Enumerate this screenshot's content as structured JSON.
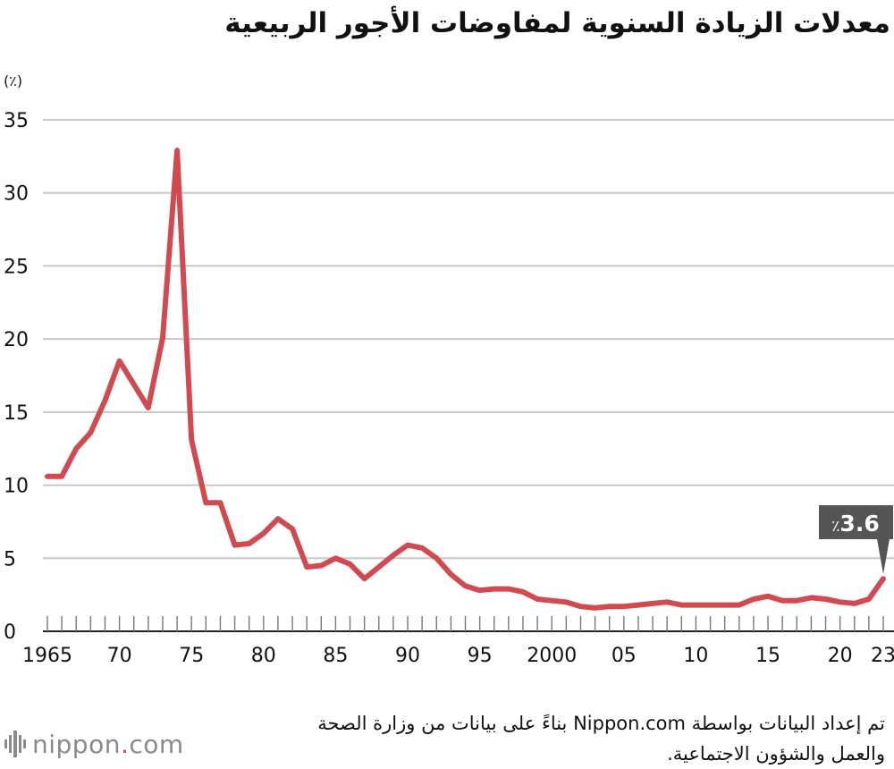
{
  "title": "معدلات الزيادة السنوية لمفاوضات الأجور الربيعية",
  "unit_label": "(٪)",
  "source_lines": [
    "تم إعداد البيانات بواسطة Nippon.com بناءً على بيانات من وزارة الصحة",
    "والعمل والشؤون الاجتماعية."
  ],
  "logo": {
    "name": "nippon",
    "dot": ".",
    "suffix": "com"
  },
  "colors": {
    "line": "#d24a4f",
    "grid": "#c8c8c8",
    "callout": "#555555",
    "text": "#111111"
  },
  "chart_data": {
    "type": "line",
    "title": "معدلات الزيادة السنوية لمفاوضات الأجور الربيعية",
    "ylabel": "(٪)",
    "xlabel": "",
    "ylim": [
      0,
      35
    ],
    "xlim": [
      1965,
      2023
    ],
    "yticks": [
      0,
      5,
      10,
      15,
      20,
      25,
      30,
      35
    ],
    "xticks": [
      {
        "year": 1965,
        "label": "1965"
      },
      {
        "year": 1970,
        "label": "70"
      },
      {
        "year": 1975,
        "label": "75"
      },
      {
        "year": 1980,
        "label": "80"
      },
      {
        "year": 1985,
        "label": "85"
      },
      {
        "year": 1990,
        "label": "90"
      },
      {
        "year": 1995,
        "label": "95"
      },
      {
        "year": 2000,
        "label": "2000"
      },
      {
        "year": 2005,
        "label": "05"
      },
      {
        "year": 2010,
        "label": "10"
      },
      {
        "year": 2015,
        "label": "15"
      },
      {
        "year": 2020,
        "label": "20"
      },
      {
        "year": 2023,
        "label": "23"
      }
    ],
    "grid": true,
    "legend": "none",
    "series": [
      {
        "x": [
          1965,
          1966,
          1967,
          1968,
          1969,
          1970,
          1971,
          1972,
          1973,
          1974,
          1975,
          1976,
          1977,
          1978,
          1979,
          1980,
          1981,
          1982,
          1983,
          1984,
          1985,
          1986,
          1987,
          1988,
          1989,
          1990,
          1991,
          1992,
          1993,
          1994,
          1995,
          1996,
          1997,
          1998,
          1999,
          2000,
          2001,
          2002,
          2003,
          2004,
          2005,
          2006,
          2007,
          2008,
          2009,
          2010,
          2011,
          2012,
          2013,
          2014,
          2015,
          2016,
          2017,
          2018,
          2019,
          2020,
          2021,
          2022,
          2023
        ],
        "values": [
          10.6,
          10.6,
          12.5,
          13.6,
          15.8,
          18.5,
          16.9,
          15.3,
          20.1,
          32.9,
          13.1,
          8.8,
          8.8,
          5.9,
          6.0,
          6.7,
          7.7,
          7.0,
          4.4,
          4.5,
          5.0,
          4.6,
          3.6,
          4.4,
          5.2,
          5.9,
          5.7,
          5.0,
          3.9,
          3.1,
          2.8,
          2.9,
          2.9,
          2.7,
          2.2,
          2.1,
          2.0,
          1.7,
          1.6,
          1.7,
          1.7,
          1.8,
          1.9,
          2.0,
          1.8,
          1.8,
          1.8,
          1.8,
          1.8,
          2.2,
          2.4,
          2.1,
          2.1,
          2.3,
          2.2,
          2.0,
          1.9,
          2.2,
          3.6
        ]
      }
    ],
    "annotation": {
      "year": 2023,
      "value": 3.6,
      "text": "3.6",
      "unit": "٪"
    }
  }
}
